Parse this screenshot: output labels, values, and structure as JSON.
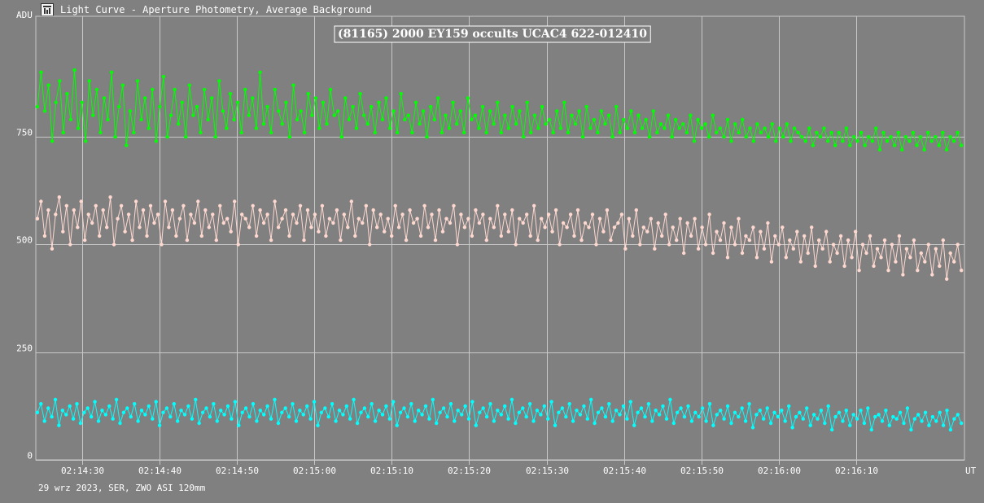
{
  "header": {
    "title": "Light Curve - Aperture Photometry, Average Background",
    "icon": "chart-window-icon"
  },
  "footer": {
    "text": "29 wrz 2023, SER, ZWO ASI 120mm"
  },
  "colors": {
    "background": "#808080",
    "grid": "#c8c8c8",
    "series_green": "#00ff00",
    "series_pink": "#ffd8d0",
    "series_cyan": "#00ffff"
  },
  "chart_data": {
    "type": "line",
    "title": "(81165) 2000 EY159 occults UCAC4 622-012410",
    "ylabel": "ADU",
    "xlabel": "UT",
    "ylim": [
      0,
      1030
    ],
    "xlim": [
      "02:14:24",
      "02:16:24"
    ],
    "yticks": [
      "0",
      "250",
      "500",
      "750"
    ],
    "xticks": [
      "02:14:30",
      "02:14:40",
      "02:14:50",
      "02:15:00",
      "02:15:10",
      "02:15:20",
      "02:15:30",
      "02:15:40",
      "02:15:50",
      "02:16:00",
      "02:16:10"
    ],
    "grid": true,
    "legend": "none",
    "series": [
      {
        "color": "#00ff00",
        "x_start": "02:14:24.2",
        "x_end": "02:16:23.6",
        "values": [
          820,
          900,
          810,
          870,
          740,
          830,
          880,
          760,
          850,
          790,
          905,
          770,
          830,
          740,
          880,
          800,
          860,
          760,
          840,
          790,
          900,
          750,
          820,
          870,
          730,
          810,
          760,
          880,
          790,
          840,
          770,
          860,
          740,
          820,
          890,
          750,
          800,
          860,
          780,
          830,
          750,
          870,
          800,
          820,
          760,
          860,
          790,
          840,
          750,
          880,
          810,
          770,
          850,
          790,
          830,
          760,
          860,
          800,
          840,
          770,
          900,
          780,
          820,
          760,
          860,
          810,
          780,
          830,
          750,
          870,
          790,
          810,
          760,
          850,
          800,
          840,
          770,
          830,
          780,
          860,
          800,
          810,
          750,
          840,
          790,
          820,
          770,
          850,
          800,
          780,
          820,
          760,
          830,
          790,
          840,
          770,
          810,
          760,
          850,
          790,
          800,
          760,
          830,
          780,
          810,
          750,
          820,
          790,
          840,
          760,
          800,
          770,
          830,
          780,
          810,
          760,
          840,
          790,
          800,
          770,
          820,
          760,
          810,
          780,
          830,
          760,
          800,
          770,
          820,
          780,
          810,
          750,
          830,
          760,
          800,
          770,
          820,
          780,
          790,
          760,
          810,
          770,
          830,
          760,
          800,
          780,
          810,
          750,
          820,
          770,
          790,
          760,
          810,
          780,
          800,
          750,
          820,
          760,
          790,
          770,
          810,
          760,
          800,
          770,
          790,
          750,
          810,
          760,
          780,
          770,
          800,
          750,
          790,
          770,
          780,
          760,
          800,
          740,
          790,
          770,
          780,
          750,
          800,
          760,
          770,
          750,
          790,
          740,
          780,
          760,
          790,
          750,
          770,
          740,
          780,
          760,
          770,
          750,
          780,
          740,
          770,
          750,
          780,
          740,
          770,
          760,
          750,
          740,
          770,
          730,
          760,
          750,
          770,
          740,
          760,
          730,
          760,
          740,
          770,
          730,
          750,
          740,
          760,
          730,
          750,
          740,
          770,
          720,
          760,
          740,
          750,
          730,
          760,
          720,
          750,
          740,
          760,
          730,
          750,
          720,
          760,
          740,
          750,
          730,
          760,
          720,
          750,
          740,
          760,
          730
        ]
      },
      {
        "color": "#ffd8d0",
        "x_start": "02:14:24.2",
        "x_end": "02:16:23.6",
        "values": [
          560,
          600,
          520,
          580,
          490,
          570,
          610,
          530,
          590,
          500,
          580,
          540,
          600,
          510,
          570,
          550,
          590,
          520,
          580,
          540,
          610,
          500,
          560,
          590,
          530,
          570,
          510,
          600,
          540,
          580,
          520,
          590,
          550,
          570,
          500,
          600,
          540,
          580,
          520,
          560,
          590,
          510,
          570,
          550,
          600,
          520,
          580,
          540,
          570,
          510,
          590,
          550,
          560,
          530,
          600,
          500,
          570,
          560,
          540,
          590,
          520,
          580,
          550,
          570,
          510,
          600,
          540,
          560,
          580,
          520,
          570,
          550,
          590,
          510,
          580,
          540,
          570,
          530,
          590,
          520,
          560,
          550,
          580,
          510,
          570,
          540,
          600,
          520,
          560,
          550,
          590,
          500,
          580,
          540,
          570,
          530,
          560,
          520,
          590,
          540,
          570,
          510,
          580,
          550,
          560,
          520,
          590,
          540,
          570,
          510,
          580,
          530,
          560,
          550,
          590,
          500,
          570,
          540,
          560,
          520,
          580,
          550,
          570,
          510,
          560,
          540,
          590,
          520,
          570,
          530,
          580,
          500,
          560,
          550,
          570,
          520,
          590,
          510,
          560,
          540,
          570,
          530,
          580,
          500,
          550,
          540,
          570,
          520,
          580,
          510,
          550,
          540,
          570,
          500,
          560,
          530,
          580,
          510,
          540,
          550,
          570,
          490,
          560,
          520,
          580,
          500,
          540,
          530,
          560,
          490,
          550,
          520,
          570,
          500,
          540,
          510,
          560,
          480,
          550,
          520,
          560,
          490,
          540,
          500,
          570,
          480,
          530,
          510,
          550,
          470,
          540,
          500,
          560,
          480,
          520,
          510,
          540,
          470,
          530,
          490,
          550,
          460,
          520,
          500,
          540,
          470,
          510,
          490,
          530,
          460,
          520,
          480,
          540,
          450,
          510,
          490,
          530,
          460,
          500,
          480,
          520,
          450,
          510,
          470,
          530,
          440,
          500,
          480,
          520,
          450,
          490,
          470,
          510,
          440,
          500,
          460,
          520,
          430,
          490,
          470,
          510,
          440,
          480,
          460,
          500,
          430,
          490,
          450,
          510,
          420,
          480,
          460,
          500,
          440
        ]
      },
      {
        "color": "#00ffff",
        "x_start": "02:14:24.2",
        "x_end": "02:16:23.6",
        "values": [
          110,
          130,
          90,
          120,
          100,
          140,
          80,
          115,
          105,
          125,
          95,
          130,
          85,
          110,
          120,
          100,
          135,
          90,
          115,
          105,
          125,
          95,
          140,
          85,
          110,
          120,
          100,
          130,
          90,
          115,
          105,
          125,
          95,
          135,
          80,
          110,
          120,
          100,
          130,
          90,
          115,
          105,
          125,
          95,
          140,
          85,
          110,
          120,
          100,
          130,
          90,
          115,
          105,
          125,
          95,
          135,
          80,
          110,
          120,
          100,
          130,
          90,
          115,
          105,
          125,
          95,
          140,
          85,
          110,
          120,
          100,
          130,
          90,
          115,
          105,
          125,
          95,
          135,
          80,
          110,
          120,
          100,
          130,
          90,
          115,
          105,
          125,
          95,
          140,
          85,
          110,
          120,
          100,
          130,
          90,
          115,
          105,
          125,
          95,
          135,
          80,
          110,
          120,
          100,
          130,
          90,
          115,
          105,
          125,
          95,
          140,
          85,
          110,
          120,
          100,
          130,
          90,
          115,
          105,
          125,
          95,
          135,
          80,
          110,
          120,
          100,
          130,
          90,
          115,
          105,
          125,
          95,
          140,
          85,
          110,
          120,
          100,
          130,
          90,
          115,
          105,
          125,
          95,
          135,
          80,
          110,
          120,
          100,
          130,
          90,
          115,
          105,
          125,
          95,
          140,
          85,
          110,
          120,
          100,
          130,
          90,
          115,
          105,
          125,
          95,
          135,
          80,
          110,
          120,
          100,
          130,
          90,
          115,
          105,
          125,
          95,
          140,
          85,
          110,
          120,
          100,
          125,
          90,
          110,
          100,
          120,
          90,
          130,
          80,
          105,
          115,
          95,
          125,
          85,
          110,
          100,
          120,
          90,
          130,
          75,
          105,
          115,
          95,
          120,
          85,
          110,
          100,
          115,
          90,
          125,
          75,
          100,
          110,
          95,
          120,
          80,
          105,
          95,
          115,
          85,
          125,
          70,
          100,
          110,
          90,
          115,
          80,
          105,
          95,
          115,
          85,
          120,
          70,
          100,
          105,
          90,
          115,
          80,
          100,
          95,
          110,
          85,
          120,
          70,
          95,
          105,
          90,
          110,
          80,
          100,
          90,
          110,
          80,
          115,
          70,
          95,
          105,
          85
        ]
      }
    ]
  }
}
